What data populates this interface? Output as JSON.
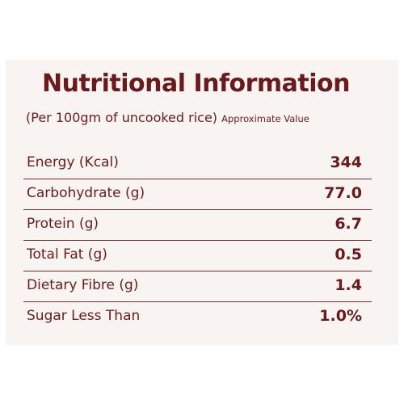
{
  "title": "Nutritional Information",
  "subtitle": {
    "main": "(Per 100gm of uncooked rice)",
    "note": "Approximate Value"
  },
  "rows": [
    {
      "label": "Energy (Kcal)",
      "value": "344"
    },
    {
      "label": "Carbohydrate (g)",
      "value": "77.0"
    },
    {
      "label": "Protein (g)",
      "value": "6.7"
    },
    {
      "label": "Total Fat (g)",
      "value": "0.5"
    },
    {
      "label": "Dietary Fibre (g)",
      "value": "1.4"
    },
    {
      "label": "Sugar Less Than",
      "value": "1.0%"
    }
  ],
  "colors": {
    "text": "#6b1a1c",
    "panel": "#f7f4f2",
    "rule": "#7a2b2b"
  }
}
